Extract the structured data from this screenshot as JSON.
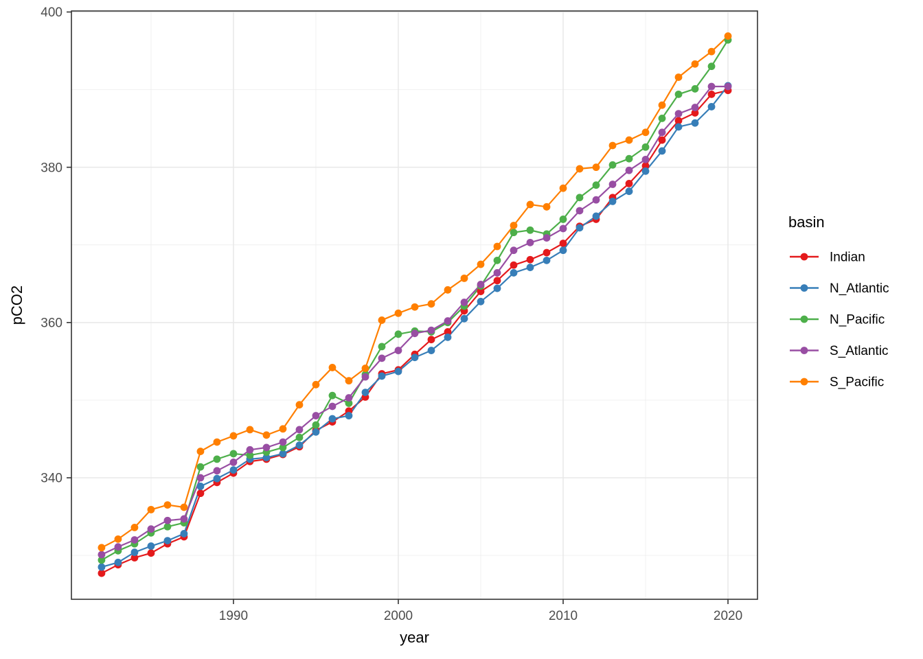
{
  "chart_data": {
    "type": "line",
    "title": "",
    "xlabel": "year",
    "ylabel": "pCO2",
    "legend_title": "basin",
    "legend_position": "right",
    "grid": true,
    "xlim": [
      1980.17,
      2021.79
    ],
    "ylim": [
      324.35,
      400.13
    ],
    "x_ticks": [
      1990,
      2000,
      2010,
      2020
    ],
    "y_ticks": [
      340,
      360,
      380,
      400
    ],
    "x_minor_gridlines": [
      1985,
      1995,
      2005,
      2015
    ],
    "y_minor_gridlines": [
      330,
      350,
      370,
      390
    ],
    "x": [
      1982,
      1983,
      1984,
      1985,
      1986,
      1987,
      1988,
      1989,
      1990,
      1991,
      1992,
      1993,
      1994,
      1995,
      1996,
      1997,
      1998,
      1999,
      2000,
      2001,
      2002,
      2003,
      2004,
      2005,
      2006,
      2007,
      2008,
      2009,
      2010,
      2011,
      2012,
      2013,
      2014,
      2015,
      2016,
      2017,
      2018,
      2019,
      2020
    ],
    "series": [
      {
        "name": "Indian",
        "color": "#E41A1C",
        "values": [
          327.7,
          328.8,
          329.7,
          330.3,
          331.5,
          332.4,
          338.0,
          339.4,
          340.6,
          342.1,
          342.4,
          343.0,
          344.0,
          346.1,
          347.2,
          348.6,
          350.4,
          353.4,
          353.9,
          355.9,
          357.8,
          358.8,
          361.5,
          364.0,
          365.4,
          367.4,
          368.1,
          369.0,
          370.2,
          372.4,
          373.3,
          376.1,
          377.9,
          380.2,
          383.5,
          386.0,
          387.0,
          389.4,
          389.9
        ]
      },
      {
        "name": "N_Atlantic",
        "color": "#377EB8",
        "values": [
          328.5,
          329.1,
          330.4,
          331.2,
          331.9,
          332.8,
          338.9,
          339.9,
          341.0,
          342.4,
          342.6,
          343.1,
          344.2,
          345.9,
          347.6,
          348.0,
          351.0,
          353.1,
          353.7,
          355.5,
          356.4,
          358.1,
          360.5,
          362.7,
          364.4,
          366.4,
          367.1,
          368.0,
          369.3,
          372.2,
          373.7,
          375.6,
          376.9,
          379.5,
          382.1,
          385.2,
          385.7,
          387.8,
          390.5
        ]
      },
      {
        "name": "N_Pacific",
        "color": "#4DAF4A",
        "values": [
          329.4,
          330.6,
          331.5,
          332.9,
          333.7,
          334.2,
          341.4,
          342.4,
          343.1,
          342.9,
          343.3,
          343.9,
          345.2,
          346.8,
          350.6,
          349.6,
          353.3,
          356.9,
          358.5,
          358.9,
          358.8,
          360.0,
          362.1,
          364.7,
          368.0,
          371.6,
          371.9,
          371.4,
          373.3,
          376.1,
          377.7,
          380.3,
          381.1,
          382.6,
          386.3,
          389.4,
          390.1,
          393.0,
          396.4
        ]
      },
      {
        "name": "S_Atlantic",
        "color": "#984EA3",
        "values": [
          330.1,
          331.1,
          332.0,
          333.4,
          334.5,
          334.7,
          340.0,
          340.9,
          342.0,
          343.6,
          343.9,
          344.6,
          346.2,
          348.0,
          349.2,
          350.3,
          353.0,
          355.4,
          356.4,
          358.6,
          359.0,
          360.2,
          362.6,
          364.9,
          366.4,
          369.3,
          370.3,
          370.9,
          372.1,
          374.4,
          375.8,
          377.8,
          379.6,
          381.0,
          384.5,
          386.9,
          387.7,
          390.4,
          390.4
        ]
      },
      {
        "name": "S_Pacific",
        "color": "#FF7F00",
        "values": [
          331.0,
          332.1,
          333.6,
          335.9,
          336.5,
          336.2,
          343.4,
          344.6,
          345.4,
          346.2,
          345.5,
          346.3,
          349.4,
          352.0,
          354.2,
          352.5,
          354.1,
          360.3,
          361.2,
          362.0,
          362.4,
          364.2,
          365.7,
          367.5,
          369.8,
          372.5,
          375.2,
          374.9,
          377.3,
          379.8,
          380.0,
          382.8,
          383.5,
          384.5,
          388.0,
          391.6,
          393.3,
          394.9,
          396.9
        ]
      }
    ],
    "style": {
      "panel_background": "#FFFFFF",
      "panel_border_color": "#333333",
      "major_grid_color": "#E8E8E8",
      "minor_grid_color": "#EFEFEF",
      "tick_color": "#333333",
      "tick_label_color": "#4D4D4D"
    }
  }
}
